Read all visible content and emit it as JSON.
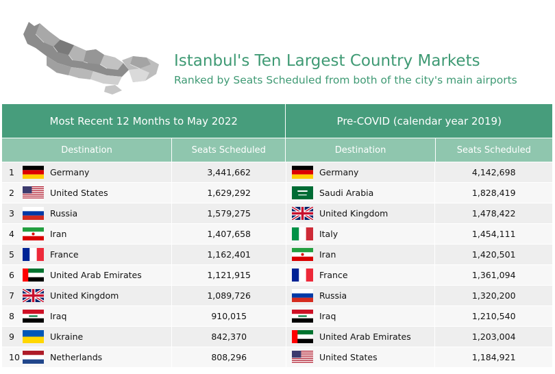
{
  "title": "Istanbul's Ten Largest Country Markets",
  "subtitle": "Ranked by Seats Scheduled from both of the city's main airports",
  "colors": {
    "accent": "#479d7c",
    "header_light": "#8fc6ae"
  },
  "table": {
    "period_recent": "Most Recent 12 Months to May 2022",
    "period_precovid": "Pre-COVID (calendar year 2019)",
    "col_destination": "Destination",
    "col_seats": "Seats Scheduled",
    "recent": [
      {
        "rank": "1",
        "country": "Germany",
        "seats": "3,441,662",
        "flag": "germany-flag-icon"
      },
      {
        "rank": "2",
        "country": "United States",
        "seats": "1,629,292",
        "flag": "us-flag-icon"
      },
      {
        "rank": "3",
        "country": "Russia",
        "seats": "1,579,275",
        "flag": "russia-flag-icon"
      },
      {
        "rank": "4",
        "country": "Iran",
        "seats": "1,407,658",
        "flag": "iran-flag-icon"
      },
      {
        "rank": "5",
        "country": "France",
        "seats": "1,162,401",
        "flag": "france-flag-icon"
      },
      {
        "rank": "6",
        "country": "United Arab Emirates",
        "seats": "1,121,915",
        "flag": "uae-flag-icon"
      },
      {
        "rank": "7",
        "country": "United Kingdom",
        "seats": "1,089,726",
        "flag": "uk-flag-icon"
      },
      {
        "rank": "8",
        "country": "Iraq",
        "seats": "910,015",
        "flag": "iraq-flag-icon"
      },
      {
        "rank": "9",
        "country": "Ukraine",
        "seats": "842,370",
        "flag": "ukraine-flag-icon"
      },
      {
        "rank": "10",
        "country": "Netherlands",
        "seats": "808,296",
        "flag": "netherlands-flag-icon"
      }
    ],
    "precovid": [
      {
        "country": "Germany",
        "seats": "4,142,698",
        "flag": "germany-flag-icon"
      },
      {
        "country": "Saudi Arabia",
        "seats": "1,828,419",
        "flag": "saudi-flag-icon"
      },
      {
        "country": "United Kingdom",
        "seats": "1,478,422",
        "flag": "uk-flag-icon"
      },
      {
        "country": "Italy",
        "seats": "1,454,111",
        "flag": "italy-flag-icon"
      },
      {
        "country": "Iran",
        "seats": "1,420,501",
        "flag": "iran-flag-icon"
      },
      {
        "country": "France",
        "seats": "1,361,094",
        "flag": "france-flag-icon"
      },
      {
        "country": "Russia",
        "seats": "1,320,200",
        "flag": "russia-flag-icon"
      },
      {
        "country": "Iraq",
        "seats": "1,210,540",
        "flag": "iraq-flag-icon"
      },
      {
        "country": "United Arab Emirates",
        "seats": "1,203,004",
        "flag": "uae-flag-icon"
      },
      {
        "country": "United States",
        "seats": "1,184,921",
        "flag": "us-flag-icon"
      }
    ]
  }
}
